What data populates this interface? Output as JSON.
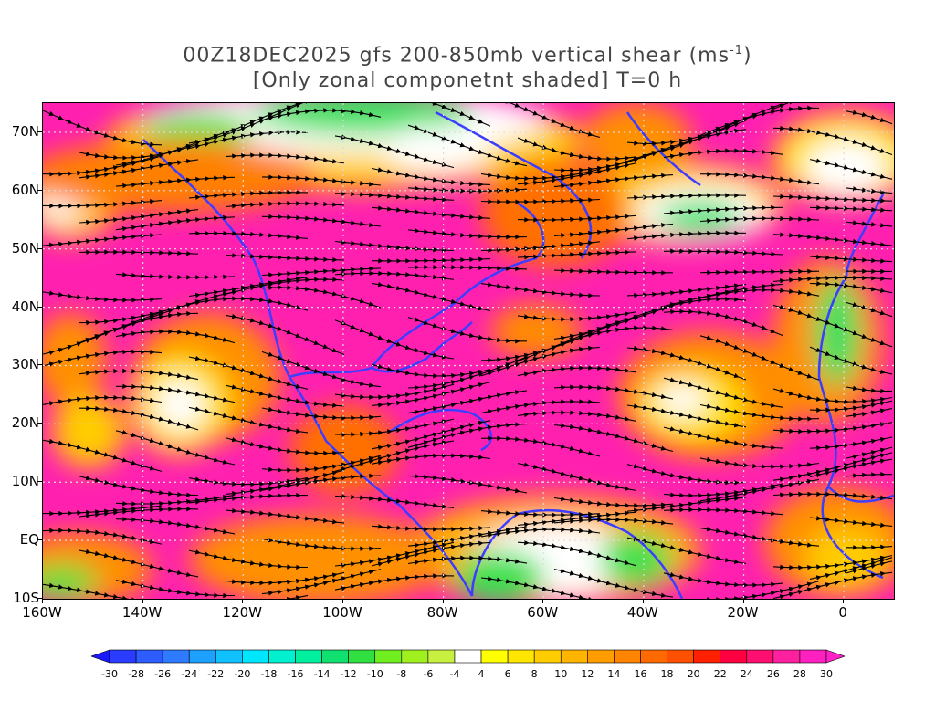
{
  "title": {
    "line1_prefix": "00Z18DEC2025 gfs 200-850mb vertical shear (ms",
    "line1_sup": "-1",
    "line1_suffix": ")",
    "line2": "[Only zonal componetnt shaded] T=0 h"
  },
  "axes": {
    "lat_labels": [
      "70N",
      "60N",
      "50N",
      "40N",
      "30N",
      "20N",
      "10N",
      "EQ",
      "10S"
    ],
    "lat_values": [
      70,
      60,
      50,
      40,
      30,
      20,
      10,
      0,
      -10
    ],
    "lon_labels": [
      "160W",
      "140W",
      "120W",
      "100W",
      "80W",
      "60W",
      "40W",
      "20W",
      "0"
    ],
    "lon_values": [
      -160,
      -140,
      -120,
      -100,
      -80,
      -60,
      -40,
      -20,
      0
    ],
    "lat_range": [
      -10,
      75
    ],
    "lon_range": [
      -160,
      10
    ]
  },
  "colorbar": {
    "labels": [
      "-30",
      "-28",
      "-26",
      "-24",
      "-22",
      "-20",
      "-18",
      "-16",
      "-14",
      "-12",
      "-10",
      "-8",
      "-6",
      "-4",
      "4",
      "6",
      "8",
      "10",
      "12",
      "14",
      "16",
      "18",
      "20",
      "22",
      "24",
      "26",
      "28",
      "30"
    ],
    "colors": [
      "#1a1aff",
      "#2a3cff",
      "#2d5cff",
      "#2f7bff",
      "#1ea0ff",
      "#10c0ff",
      "#00e6ff",
      "#00f0d0",
      "#00f0a0",
      "#10e070",
      "#30e040",
      "#70ee20",
      "#a0f020",
      "#c8f040",
      "#ffffff",
      "#ffff00",
      "#ffe600",
      "#ffcc00",
      "#ffb400",
      "#ff9c00",
      "#ff8400",
      "#ff6a00",
      "#ff5000",
      "#ff2000",
      "#ff0040",
      "#ff1070",
      "#ff20a0",
      "#ff20c0",
      "#ff20c8"
    ]
  },
  "legend_colors": {
    "coastline": "#3d3dff",
    "contour": "#8a2be2",
    "streamline": "#000000"
  }
}
